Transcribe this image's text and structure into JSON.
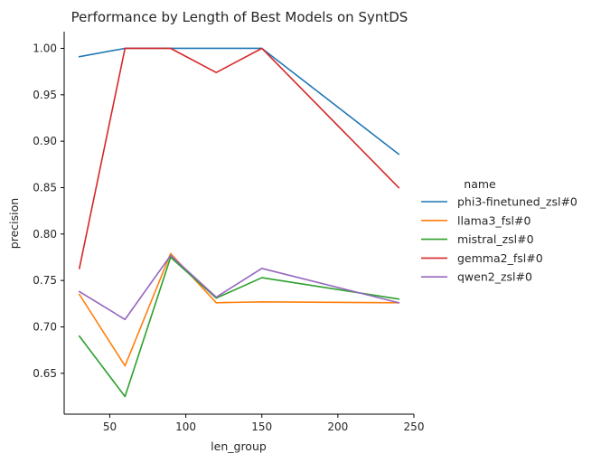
{
  "chart_data": {
    "type": "line",
    "title": "Performance by Length of Best Models on SyntDS",
    "xlabel": "len_group",
    "ylabel": "precision",
    "xlim": [
      20,
      250
    ],
    "ylim": [
      0.606,
      1.018
    ],
    "x_ticks": [
      50,
      100,
      150,
      200,
      250
    ],
    "x_tick_labels": [
      "50",
      "100",
      "150",
      "200",
      "250"
    ],
    "y_ticks": [
      0.65,
      0.7,
      0.75,
      0.8,
      0.85,
      0.9,
      0.95,
      1.0
    ],
    "y_tick_labels": [
      "0.65",
      "0.70",
      "0.75",
      "0.80",
      "0.85",
      "0.90",
      "0.95",
      "1.00"
    ],
    "grid": false,
    "legend": {
      "title": "name",
      "position": "right"
    },
    "x": [
      30,
      60,
      90,
      120,
      150,
      240
    ],
    "series": [
      {
        "name": "phi3-finetuned_zsl#0",
        "color": "#1f77b4",
        "values": [
          0.991,
          1.0,
          1.0,
          1.0,
          1.0,
          0.886
        ]
      },
      {
        "name": "llama3_fsl#0",
        "color": "#ff7f0e",
        "values": [
          0.735,
          0.658,
          0.779,
          0.726,
          0.727,
          0.726
        ]
      },
      {
        "name": "mistral_zsl#0",
        "color": "#2ca02c",
        "values": [
          0.69,
          0.625,
          0.775,
          0.731,
          0.753,
          0.73
        ]
      },
      {
        "name": "gemma2_fsl#0",
        "color": "#d62728",
        "values": [
          0.763,
          1.0,
          1.0,
          0.974,
          1.0,
          0.85
        ]
      },
      {
        "name": "qwen2_zsl#0",
        "color": "#9467bd",
        "values": [
          0.738,
          0.708,
          0.777,
          0.732,
          0.763,
          0.726
        ]
      }
    ]
  }
}
